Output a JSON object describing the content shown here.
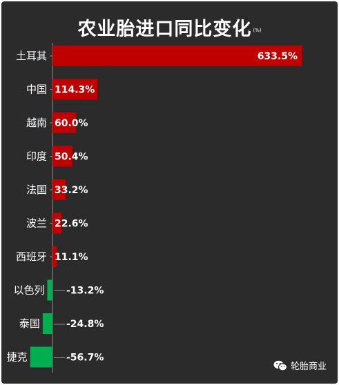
{
  "chart_data": {
    "type": "bar",
    "orientation": "horizontal",
    "title": "农业胎进口同比变化",
    "unit": "(%)",
    "categories": [
      "土耳其",
      "中国",
      "越南",
      "印度",
      "法国",
      "波兰",
      "西班牙",
      "以色列",
      "泰国",
      "捷克"
    ],
    "values": [
      633.5,
      114.3,
      60.0,
      50.4,
      33.2,
      22.6,
      11.1,
      -13.2,
      -24.8,
      -56.7
    ],
    "value_labels": [
      "633.5%",
      "114.3%",
      "60.0%",
      "50.4%",
      "33.2%",
      "22.6%",
      "11.1%",
      "-13.2%",
      "-24.8%",
      "-56.7%"
    ],
    "colors": {
      "positive": "#c00000",
      "negative": "#00b050",
      "background": "#2b2b2b",
      "text": "#ffffff",
      "axis": "#8c8c8c"
    },
    "grid": false,
    "legend": "none"
  },
  "watermark": {
    "icon": "wechat-icon",
    "text": "轮胎商业"
  }
}
